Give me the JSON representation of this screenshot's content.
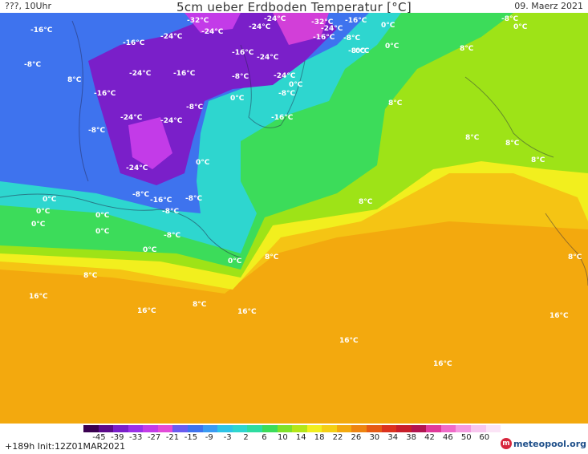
{
  "header": {
    "left": "???, 10Uhr",
    "title": "5cm ueber Erdboden Temperatur [°C]",
    "date": "09. Maerz 2021"
  },
  "colors": {
    "deep_cold": "#7a1fc9",
    "cold": "#3e73ee",
    "cyan": "#2ed6cf",
    "green": "#3cdc5a",
    "yellow_green": "#9ee317",
    "yellow": "#f2ef1e",
    "orange": "#f3a90e"
  },
  "map_labels": [
    {
      "text": "-16°C"
    },
    {
      "text": "-32°C"
    },
    {
      "text": "-24°C"
    },
    {
      "text": "-32°C"
    },
    {
      "text": "-24°C"
    },
    {
      "text": "-16°C"
    },
    {
      "text": "-8°C"
    },
    {
      "text": "-24°C"
    },
    {
      "text": "-24°C"
    },
    {
      "text": "-24°C"
    },
    {
      "text": "-16°C"
    },
    {
      "text": "-16°C"
    },
    {
      "text": "-8°C"
    },
    {
      "text": "-16°C"
    },
    {
      "text": "-8°C"
    },
    {
      "text": "0°C"
    },
    {
      "text": "0°C"
    },
    {
      "text": "0°C"
    },
    {
      "text": "0°C"
    },
    {
      "text": "8°C"
    },
    {
      "text": "-8°C"
    },
    {
      "text": "-24°C"
    },
    {
      "text": "-16°C"
    },
    {
      "text": "-24°C"
    },
    {
      "text": "-8°C"
    },
    {
      "text": "-24°C"
    },
    {
      "text": "0°C"
    },
    {
      "text": "-16°C"
    },
    {
      "text": "-8°C"
    },
    {
      "text": "-24°C"
    },
    {
      "text": "0°C"
    },
    {
      "text": "-8°C"
    },
    {
      "text": "-16°C"
    },
    {
      "text": "8°C"
    },
    {
      "text": "-8°C"
    },
    {
      "text": "-24°C"
    },
    {
      "text": "-24°C"
    },
    {
      "text": "0°C"
    },
    {
      "text": "8°C"
    },
    {
      "text": "0°C"
    },
    {
      "text": "-8°C"
    },
    {
      "text": "-16°C"
    },
    {
      "text": "0°C"
    },
    {
      "text": "0°C"
    },
    {
      "text": "-8°C"
    },
    {
      "text": "0°C"
    },
    {
      "text": "0°C"
    },
    {
      "text": "0°C"
    },
    {
      "text": "8°C"
    },
    {
      "text": "-8°C"
    },
    {
      "text": "8°C"
    },
    {
      "text": "8°C"
    },
    {
      "text": "8°C"
    },
    {
      "text": "16°C"
    },
    {
      "text": "16°C"
    },
    {
      "text": "8°C"
    },
    {
      "text": "16°C"
    },
    {
      "text": "16°C"
    },
    {
      "text": "16°C"
    },
    {
      "text": "16°C"
    },
    {
      "text": "-8°C"
    },
    {
      "text": "0°C"
    },
    {
      "text": "8°C"
    },
    {
      "text": "8°C"
    },
    {
      "text": "8°C"
    }
  ],
  "colorbar": {
    "ticks": [
      "-45",
      "-39",
      "-33",
      "-27",
      "-21",
      "-15",
      "-9",
      "-3",
      "2",
      "6",
      "10",
      "14",
      "18",
      "22",
      "26",
      "30",
      "34",
      "38",
      "42",
      "46",
      "50",
      "60"
    ],
    "colors": [
      "#3a0050",
      "#5c0a8a",
      "#7a1fc9",
      "#9b30e8",
      "#c33be8",
      "#e24bd8",
      "#6a5cf0",
      "#3e73ee",
      "#3a9bf2",
      "#2ec4e6",
      "#2ed6cf",
      "#2edca0",
      "#3cdc5a",
      "#7fe12a",
      "#b4e618",
      "#f2ef1e",
      "#f5cf14",
      "#f3a90e",
      "#ee8410",
      "#e65a14",
      "#dc321e",
      "#c81e2a",
      "#b21450",
      "#e03a9a",
      "#f06ac8",
      "#f59ae0",
      "#f8c6ee",
      "#fbe4f6"
    ]
  },
  "footer": {
    "run": "+189h  Init:12Z01MAR2021",
    "logo_text": "meteopool.org"
  }
}
